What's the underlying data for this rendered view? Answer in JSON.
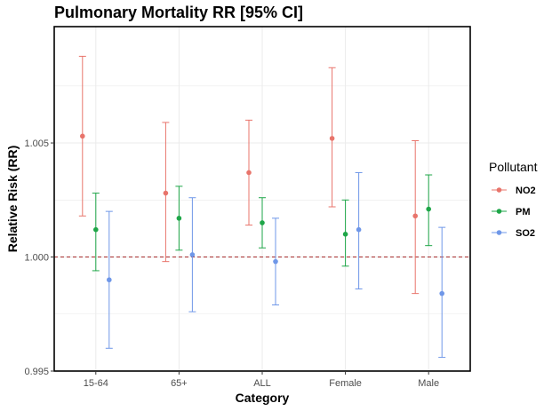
{
  "chart_data": {
    "type": "scatter",
    "title": "Pulmonary Mortality RR [95% CI]",
    "xlabel": "Category",
    "ylabel": "Relative Risk (RR)",
    "categories": [
      "15-64",
      "65+",
      "ALL",
      "Female",
      "Male"
    ],
    "ylim": [
      0.995,
      1.0101
    ],
    "yticks": [
      0.995,
      1.0,
      1.005
    ],
    "ytick_labels": [
      "0.995",
      "1.000",
      "1.005"
    ],
    "reference_line": 1.0,
    "grid": true,
    "legend": {
      "title": "Pollutant",
      "position": "right"
    },
    "series": [
      {
        "name": "NO2",
        "color": "#E8746B",
        "values": [
          1.0053,
          1.0028,
          1.0037,
          1.0052,
          1.0018
        ],
        "lower": [
          1.0018,
          0.9998,
          1.0014,
          1.0022,
          0.9984
        ],
        "upper": [
          1.0088,
          1.0059,
          1.006,
          1.0083,
          1.0051
        ]
      },
      {
        "name": "PM",
        "color": "#1EA648",
        "values": [
          1.0012,
          1.0017,
          1.0015,
          1.001,
          1.0021
        ],
        "lower": [
          0.9994,
          1.0003,
          1.0004,
          0.9996,
          1.0005
        ],
        "upper": [
          1.0028,
          1.0031,
          1.0026,
          1.0025,
          1.0036
        ]
      },
      {
        "name": "SO2",
        "color": "#6F97E8",
        "values": [
          0.999,
          1.0001,
          0.9998,
          1.0012,
          0.9984
        ],
        "lower": [
          0.996,
          0.9976,
          0.9979,
          0.9986,
          0.9956
        ],
        "upper": [
          1.002,
          1.0026,
          1.0017,
          1.0037,
          1.0013
        ]
      }
    ]
  }
}
